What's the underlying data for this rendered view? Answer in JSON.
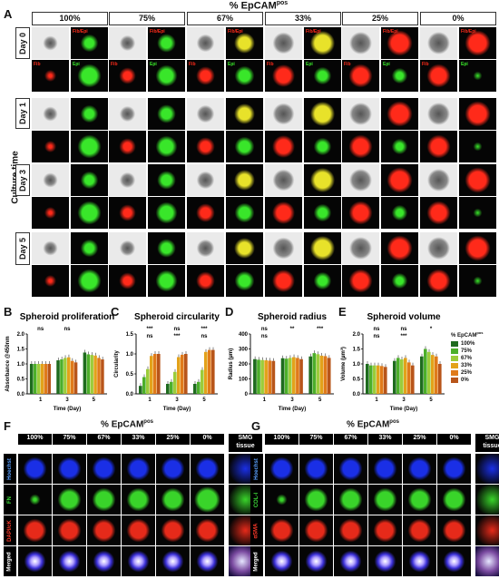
{
  "panel_a": {
    "letter": "A",
    "header": "% EpCAM",
    "header_sup": "pos",
    "row_axis_label": "Culture time",
    "columns": [
      "100%",
      "75%",
      "67%",
      "33%",
      "25%",
      "0%"
    ],
    "rows": [
      "Day 0",
      "Day 1",
      "Day 3",
      "Day 5"
    ],
    "fib_label": "Fib",
    "epi_label": "Epi",
    "fib_epi_label": "Fib/Epi",
    "colors": {
      "red": "#ff2a1a",
      "green": "#39e62a",
      "yellow": "#e8e22a"
    }
  },
  "panel_b": {
    "letter": "B"
  },
  "panel_c": {
    "letter": "C"
  },
  "panel_d": {
    "letter": "D"
  },
  "panel_e": {
    "letter": "E"
  },
  "panel_f": {
    "letter": "F",
    "header": "% EpCAM",
    "header_sup": "pos",
    "columns": [
      "100%",
      "75%",
      "67%",
      "33%",
      "25%",
      "0%"
    ],
    "tissue_label_1": "SMG",
    "tissue_label_2": "tissue",
    "rows": [
      "Hoechst",
      "FN",
      "DAPI/cK",
      "Merged"
    ]
  },
  "panel_g": {
    "letter": "G",
    "header": "% EpCAM",
    "header_sup": "pos",
    "columns": [
      "100%",
      "75%",
      "67%",
      "33%",
      "25%",
      "0%"
    ],
    "tissue_label_1": "SMG",
    "tissue_label_2": "tissue",
    "rows": [
      "Hoechst",
      "COL-I",
      "αSMA",
      "Merged"
    ]
  },
  "legend": {
    "title": "% EpCAM",
    "title_sup": "pos",
    "items": [
      {
        "label": "100%",
        "color": "#1e6b1e"
      },
      {
        "label": "75%",
        "color": "#4caf2a"
      },
      {
        "label": "67%",
        "color": "#9ccc3a"
      },
      {
        "label": "33%",
        "color": "#e3a21a"
      },
      {
        "label": "25%",
        "color": "#e07a1a"
      },
      {
        "label": "0%",
        "color": "#b8551a"
      }
    ]
  },
  "chart_data": [
    {
      "type": "bar",
      "title": "Spheroid proliferation",
      "xlabel": "Time (Day)",
      "ylabel": "Absorbance @450nm",
      "categories": [
        "1",
        "3",
        "5"
      ],
      "ylim": [
        0,
        2.0
      ],
      "yticks": [
        "0.0",
        "0.5",
        "1.0",
        "1.5",
        "2.0"
      ],
      "series": [
        {
          "name": "100%",
          "values": [
            1.0,
            1.12,
            1.38
          ]
        },
        {
          "name": "75%",
          "values": [
            1.0,
            1.15,
            1.32
          ]
        },
        {
          "name": "67%",
          "values": [
            1.0,
            1.2,
            1.3
          ]
        },
        {
          "name": "33%",
          "values": [
            1.0,
            1.22,
            1.28
          ]
        },
        {
          "name": "25%",
          "values": [
            1.0,
            1.1,
            1.2
          ]
        },
        {
          "name": "0%",
          "values": [
            1.0,
            1.05,
            1.15
          ]
        }
      ],
      "annotations": [
        "ns",
        "ns"
      ]
    },
    {
      "type": "bar",
      "title": "Spheroid circularity",
      "xlabel": "Time (Day)",
      "ylabel": "Circularity",
      "categories": [
        "1",
        "3",
        "5"
      ],
      "ylim": [
        0,
        1.5
      ],
      "yticks": [
        "0.0",
        "0.5",
        "1.0",
        "1.5"
      ],
      "series": [
        {
          "name": "100%",
          "values": [
            0.2,
            0.25,
            0.25
          ]
        },
        {
          "name": "75%",
          "values": [
            0.42,
            0.3,
            0.3
          ]
        },
        {
          "name": "67%",
          "values": [
            0.62,
            0.55,
            0.6
          ]
        },
        {
          "name": "33%",
          "values": [
            0.95,
            0.92,
            1.05
          ]
        },
        {
          "name": "25%",
          "values": [
            1.0,
            0.98,
            1.1
          ]
        },
        {
          "name": "0%",
          "values": [
            1.0,
            1.0,
            1.1
          ]
        }
      ],
      "annotations": [
        "***",
        "ns",
        "***",
        "ns",
        "***",
        "ns"
      ]
    },
    {
      "type": "bar",
      "title": "Spheroid radius",
      "xlabel": "Time (Day)",
      "ylabel": "Radius (µm)",
      "categories": [
        "1",
        "3",
        "5"
      ],
      "ylim": [
        0,
        400
      ],
      "yticks": [
        "0",
        "100",
        "200",
        "300",
        "400"
      ],
      "series": [
        {
          "name": "100%",
          "values": [
            232,
            238,
            250
          ]
        },
        {
          "name": "75%",
          "values": [
            228,
            235,
            272
          ]
        },
        {
          "name": "67%",
          "values": [
            226,
            240,
            265
          ]
        },
        {
          "name": "33%",
          "values": [
            224,
            245,
            255
          ]
        },
        {
          "name": "25%",
          "values": [
            222,
            240,
            252
          ]
        },
        {
          "name": "0%",
          "values": [
            220,
            232,
            240
          ]
        }
      ],
      "annotations": [
        "ns",
        "**",
        "***",
        "ns"
      ]
    },
    {
      "type": "bar",
      "title": "Spheroid volume",
      "xlabel": "Time (Day)",
      "ylabel": "Volume (µm³)",
      "categories": [
        "1",
        "3",
        "5"
      ],
      "ylim": [
        0,
        2.0
      ],
      "yticks": [
        "0.0",
        "0.5",
        "1.0",
        "1.5",
        "2.0"
      ],
      "series": [
        {
          "name": "100%",
          "values": [
            1.0,
            1.1,
            1.25
          ]
        },
        {
          "name": "75%",
          "values": [
            0.95,
            1.2,
            1.5
          ]
        },
        {
          "name": "67%",
          "values": [
            0.95,
            1.15,
            1.4
          ]
        },
        {
          "name": "33%",
          "values": [
            0.95,
            1.2,
            1.3
          ]
        },
        {
          "name": "25%",
          "values": [
            0.93,
            1.05,
            1.25
          ]
        },
        {
          "name": "0%",
          "values": [
            0.9,
            0.95,
            1.0
          ]
        }
      ],
      "annotations": [
        "ns",
        "ns",
        "*",
        "ns",
        "***"
      ]
    }
  ]
}
